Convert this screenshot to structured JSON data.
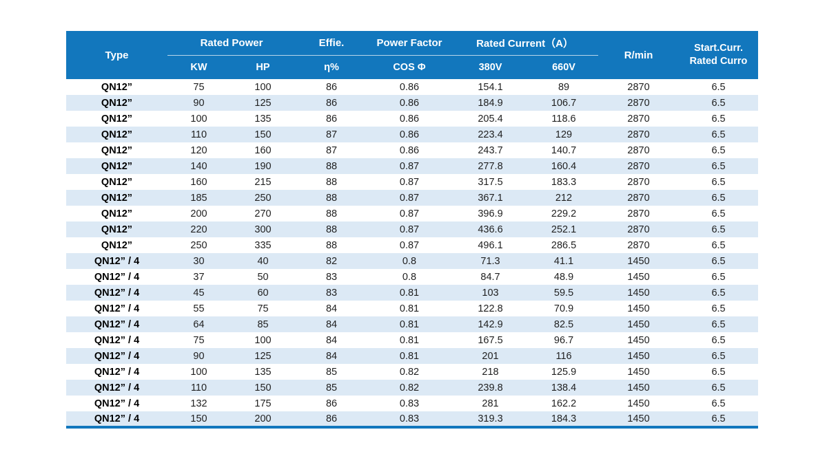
{
  "table": {
    "colors": {
      "header_bg": "#1277bd",
      "header_text": "#ffffff",
      "row_alt_bg": "#dce9f5",
      "row_bg": "#ffffff",
      "body_text": "#1f1f1f",
      "bottom_border": "#1277bd"
    },
    "header": {
      "type": "Type",
      "rated_power": "Rated Power",
      "effie": "Effie.",
      "power_factor": "Power Factor",
      "rated_current": "Rated Current（A）",
      "rpm": "R/min",
      "start_curr_line1": "Start.Curr.",
      "start_curr_line2": "Rated Curro",
      "kw": "KW",
      "hp": "HP",
      "eta": "η%",
      "cos": "COS Φ",
      "v380": "380V",
      "v660": "660V"
    },
    "column_keys": [
      "type",
      "kw",
      "hp",
      "eta",
      "cos",
      "v380",
      "v660",
      "rpm",
      "start-curr"
    ],
    "rows": [
      [
        "QN12”",
        "75",
        "100",
        "86",
        "0.86",
        "154.1",
        "89",
        "2870",
        "6.5"
      ],
      [
        "QN12”",
        "90",
        "125",
        "86",
        "0.86",
        "184.9",
        "106.7",
        "2870",
        "6.5"
      ],
      [
        "QN12”",
        "100",
        "135",
        "86",
        "0.86",
        "205.4",
        "118.6",
        "2870",
        "6.5"
      ],
      [
        "QN12”",
        "110",
        "150",
        "87",
        "0.86",
        "223.4",
        "129",
        "2870",
        "6.5"
      ],
      [
        "QN12”",
        "120",
        "160",
        "87",
        "0.86",
        "243.7",
        "140.7",
        "2870",
        "6.5"
      ],
      [
        "QN12”",
        "140",
        "190",
        "88",
        "0.87",
        "277.8",
        "160.4",
        "2870",
        "6.5"
      ],
      [
        "QN12”",
        "160",
        "215",
        "88",
        "0.87",
        "317.5",
        "183.3",
        "2870",
        "6.5"
      ],
      [
        "QN12”",
        "185",
        "250",
        "88",
        "0.87",
        "367.1",
        "212",
        "2870",
        "6.5"
      ],
      [
        "QN12”",
        "200",
        "270",
        "88",
        "0.87",
        "396.9",
        "229.2",
        "2870",
        "6.5"
      ],
      [
        "QN12”",
        "220",
        "300",
        "88",
        "0.87",
        "436.6",
        "252.1",
        "2870",
        "6.5"
      ],
      [
        "QN12”",
        "250",
        "335",
        "88",
        "0.87",
        "496.1",
        "286.5",
        "2870",
        "6.5"
      ],
      [
        "QN12” / 4",
        "30",
        "40",
        "82",
        "0.8",
        "71.3",
        "41.1",
        "1450",
        "6.5"
      ],
      [
        "QN12” / 4",
        "37",
        "50",
        "83",
        "0.8",
        "84.7",
        "48.9",
        "1450",
        "6.5"
      ],
      [
        "QN12” / 4",
        "45",
        "60",
        "83",
        "0.81",
        "103",
        "59.5",
        "1450",
        "6.5"
      ],
      [
        "QN12” / 4",
        "55",
        "75",
        "84",
        "0.81",
        "122.8",
        "70.9",
        "1450",
        "6.5"
      ],
      [
        "QN12” / 4",
        "64",
        "85",
        "84",
        "0.81",
        "142.9",
        "82.5",
        "1450",
        "6.5"
      ],
      [
        "QN12” / 4",
        "75",
        "100",
        "84",
        "0.81",
        "167.5",
        "96.7",
        "1450",
        "6.5"
      ],
      [
        "QN12” / 4",
        "90",
        "125",
        "84",
        "0.81",
        "201",
        "116",
        "1450",
        "6.5"
      ],
      [
        "QN12” / 4",
        "100",
        "135",
        "85",
        "0.82",
        "218",
        "125.9",
        "1450",
        "6.5"
      ],
      [
        "QN12” / 4",
        "110",
        "150",
        "85",
        "0.82",
        "239.8",
        "138.4",
        "1450",
        "6.5"
      ],
      [
        "QN12” / 4",
        "132",
        "175",
        "86",
        "0.83",
        "281",
        "162.2",
        "1450",
        "6.5"
      ],
      [
        "QN12” / 4",
        "150",
        "200",
        "86",
        "0.83",
        "319.3",
        "184.3",
        "1450",
        "6.5"
      ]
    ]
  }
}
